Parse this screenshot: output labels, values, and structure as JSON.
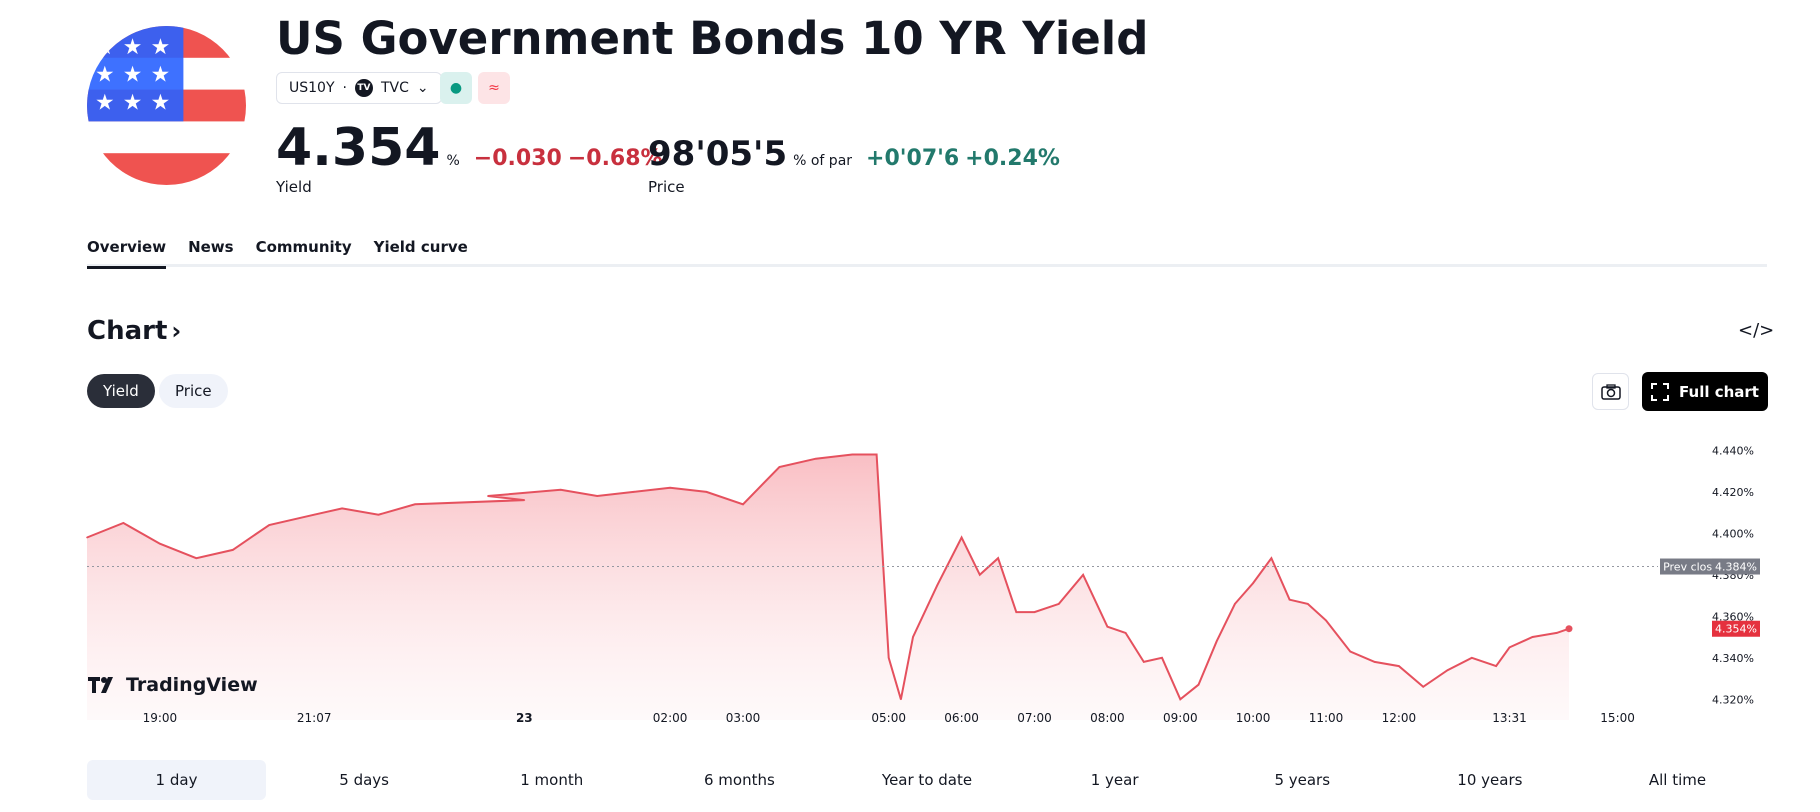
{
  "header": {
    "title": "US Government Bonds 10 YR Yield",
    "symbol": "US10Y",
    "exchange": "TVC",
    "exchange_logo": "TV",
    "market_status_icon": "●",
    "delayed_icon": "≈"
  },
  "quote": {
    "yield_value": "4.354",
    "yield_unit": "%",
    "yield_change": "−0.030",
    "yield_change_pct": "−0.68%",
    "yield_label": "Yield",
    "price_value": "98'05'5",
    "price_unit": "% of par",
    "price_change": "+0'07'6",
    "price_change_pct": "+0.24%",
    "price_label": "Price"
  },
  "tabs": [
    "Overview",
    "News",
    "Community",
    "Yield curve"
  ],
  "chart_section": {
    "heading": "Chart",
    "embed_icon": "</>",
    "toggle": [
      "Yield",
      "Price"
    ],
    "full_chart_label": "Full chart",
    "watermark": "TradingView"
  },
  "ranges": [
    "1 day",
    "5 days",
    "1 month",
    "6 months",
    "Year to date",
    "1 year",
    "5 years",
    "10 years",
    "All time"
  ],
  "colors": {
    "negative": "#c8303e",
    "positive": "#22796c",
    "line": "#e5515e",
    "fill": "#fbd3d6"
  },
  "chart_data": {
    "type": "area",
    "x": [
      "18:00",
      "18:30",
      "19:00",
      "19:30",
      "20:00",
      "20:30",
      "21:07",
      "21:30",
      "22:00",
      "22:30",
      "23",
      "23:30",
      "00:30",
      "01:00",
      "01:30",
      "02:00",
      "02:30",
      "03:00",
      "03:30",
      "04:00",
      "04:30",
      "04:50",
      "05:00",
      "05:10",
      "05:20",
      "05:40",
      "06:00",
      "06:15",
      "06:30",
      "06:45",
      "07:00",
      "07:20",
      "07:40",
      "08:00",
      "08:15",
      "08:30",
      "08:45",
      "09:00",
      "09:15",
      "09:30",
      "09:45",
      "10:00",
      "10:15",
      "10:30",
      "10:45",
      "11:00",
      "11:20",
      "11:40",
      "12:00",
      "12:20",
      "12:40",
      "13:00",
      "13:20",
      "13:31",
      "13:50",
      "14:10",
      "14:20"
    ],
    "values": [
      4.398,
      4.405,
      4.395,
      4.388,
      4.392,
      4.404,
      4.409,
      4.412,
      4.409,
      4.414,
      4.416,
      4.418,
      4.421,
      4.418,
      4.42,
      4.422,
      4.42,
      4.414,
      4.432,
      4.436,
      4.438,
      4.438,
      4.34,
      4.32,
      4.35,
      4.375,
      4.398,
      4.38,
      4.388,
      4.362,
      4.362,
      4.366,
      4.38,
      4.355,
      4.352,
      4.338,
      4.34,
      4.32,
      4.327,
      4.348,
      4.366,
      4.376,
      4.388,
      4.368,
      4.366,
      4.358,
      4.343,
      4.338,
      4.336,
      4.326,
      4.334,
      4.34,
      4.336,
      4.345,
      4.35,
      4.352,
      4.354
    ],
    "x_ticks": [
      "19:00",
      "21:07",
      "23",
      "02:00",
      "03:00",
      "05:00",
      "06:00",
      "07:00",
      "08:00",
      "09:00",
      "10:00",
      "11:00",
      "12:00",
      "13:31",
      "15:00"
    ],
    "y_ticks": [
      "4.440%",
      "4.420%",
      "4.400%",
      "4.380%",
      "4.360%",
      "4.340%",
      "4.320%"
    ],
    "ylim": [
      4.31,
      4.445
    ],
    "prev_close": 4.384,
    "prev_close_label": "Prev close",
    "prev_close_value": "4.384%",
    "last_value": "4.354%"
  }
}
